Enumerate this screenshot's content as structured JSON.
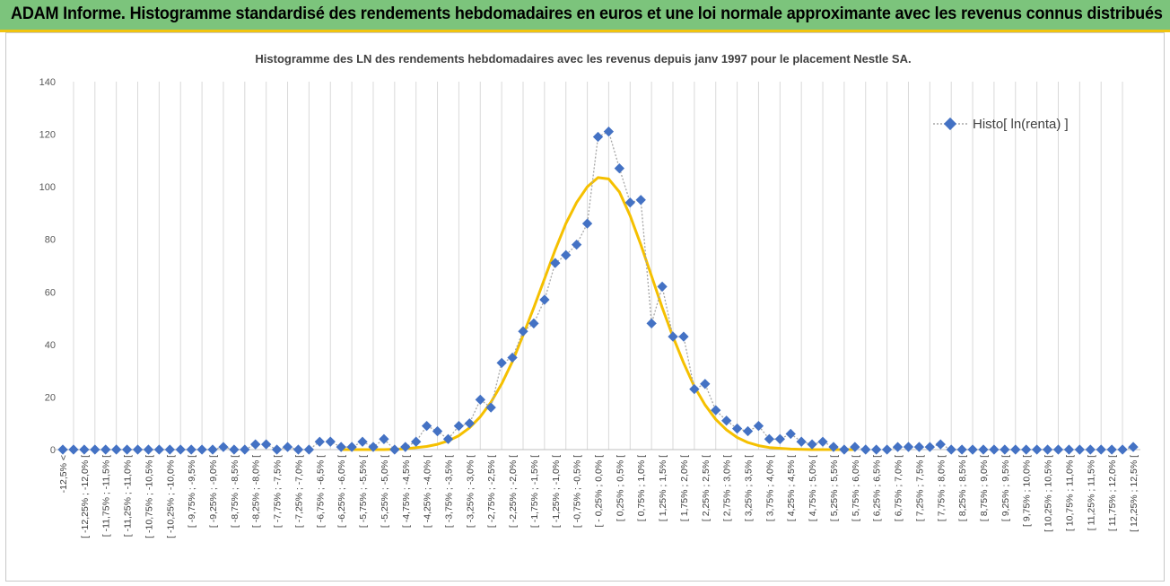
{
  "banner": {
    "title": "ADAM Informe. Histogramme standardisé des rendements hebdomadaires en euros et une loi normale approximante avec les revenus connus distribués"
  },
  "colors": {
    "banner_bg": "#7cc47c",
    "banner_border": "#f1c40f",
    "histo_marker": "#4472c4",
    "histo_line": "#a6a6a6",
    "normal_curve": "#f5c000",
    "grid": "#d9d9d9"
  },
  "chart_data": {
    "type": "line",
    "title": "Histogramme des LN des rendements hebdomadaires avec les revenus depuis janv 1997 pour le placement Nestle SA.",
    "xlabel": "",
    "ylabel": "",
    "ylim": [
      0,
      140
    ],
    "yticks": [
      0,
      20,
      40,
      60,
      80,
      100,
      120,
      140
    ],
    "grid": "vertical",
    "legend_position": "top-right",
    "categories": [
      "-12,5% <",
      "[ -12,25% ; -12,0% [",
      "[ -11,75% ; -11,5% [",
      "[ -11,25% ; -11,0% [",
      "[ -10,75% ; -10,5% [",
      "[ -10,25% ; -10,0% [",
      "[ -9,75% ; -9,5% [",
      "[ -9,25% ; -9,0% [",
      "[ -8,75% ; -8,5% [",
      "[ -8,25% ; -8,0% [",
      "[ -7,75% ; -7,5% [",
      "[ -7,25% ; -7,0% [",
      "[ -6,75% ; -6,5% [",
      "[ -6,25% ; -6,0% [",
      "[ -5,75% ; -5,5% [",
      "[ -5,25% ; -5,0% [",
      "[ -4,75% ; -4,5% [",
      "[ -4,25% ; -4,0% [",
      "[ -3,75% ; -3,5% [",
      "[ -3,25% ; -3,0% [",
      "[ -2,75% ; -2,5% [",
      "[ -2,25% ; -2,0% [",
      "[ -1,75% ; -1,5% [",
      "[ -1,25% ; -1,0% [",
      "[ -0,75% ; -0,5% [",
      "[ - 0,25% ; 0,0% [",
      "[ 0,25% ; 0,5% [",
      "[ 0,75% ; 1,0% [",
      "[ 1,25% ; 1,5% [",
      "[ 1,75% ; 2,0% [",
      "[ 2,25% ; 2,5% [",
      "[ 2,75% ; 3,0% [",
      "[ 3,25% ; 3,5% [",
      "[ 3,75% ; 4,0% [",
      "[ 4,25% ; 4,5% [",
      "[ 4,75% ; 5,0% [",
      "[ 5,25% ; 5,5% [",
      "[ 5,75% ; 6,0% [",
      "[ 6,25% ; 6,5% [",
      "[ 6,75% ; 7,0% [",
      "[ 7,25% ; 7,5% [",
      "[ 7,75% ; 8,0% [",
      "[ 8,25% ; 8,5% [",
      "[ 8,75% ; 9,0% [",
      "[ 9,25% ; 9,5% [",
      "[ 9,75% ; 10,0% [",
      "[ 10,25% ; 10,5% [",
      "[ 10,75% ; 11,0% [",
      "[ 11,25% ; 11,5% [",
      "[ 11,75% ; 12,0% [",
      "[ 12,25% ; 12,5% ["
    ],
    "series": [
      {
        "name": "Histo[ ln(renta) ]",
        "x": [
          -12.5,
          -12.25,
          -12,
          -11.75,
          -11.5,
          -11.25,
          -11,
          -10.75,
          -10.5,
          -10.25,
          -10,
          -9.75,
          -9.5,
          -9.25,
          -9,
          -8.75,
          -8.5,
          -8.25,
          -8,
          -7.75,
          -7.5,
          -7.25,
          -7,
          -6.75,
          -6.5,
          -6.25,
          -6,
          -5.75,
          -5.5,
          -5.25,
          -5,
          -4.75,
          -4.5,
          -4.25,
          -4,
          -3.75,
          -3.5,
          -3.25,
          -3,
          -2.75,
          -2.5,
          -2.25,
          -2,
          -1.75,
          -1.5,
          -1.25,
          -1,
          -0.75,
          -0.5,
          -0.25,
          0,
          0.25,
          0.5,
          0.75,
          1,
          1.25,
          1.5,
          1.75,
          2,
          2.25,
          2.5,
          2.75,
          3,
          3.25,
          3.5,
          3.75,
          4,
          4.25,
          4.5,
          4.75,
          5,
          5.25,
          5.5,
          5.75,
          6,
          6.25,
          6.5,
          6.75,
          7,
          7.25,
          7.5,
          7.75,
          8,
          8.25,
          8.5,
          8.75,
          9,
          9.25,
          9.5,
          9.75,
          10,
          10.25,
          10.5,
          10.75,
          11,
          11.25,
          11.5,
          11.75,
          12,
          12.25,
          12.5
        ],
        "values": [
          0,
          0,
          0,
          0,
          0,
          0,
          0,
          0,
          0,
          0,
          0,
          0,
          0,
          0,
          0,
          1,
          0,
          0,
          2,
          2,
          0,
          1,
          0,
          0,
          3,
          3,
          1,
          1,
          3,
          1,
          4,
          0,
          1,
          3,
          9,
          7,
          4,
          9,
          10,
          19,
          16,
          33,
          35,
          45,
          48,
          57,
          71,
          74,
          78,
          86,
          119,
          121,
          107,
          94,
          95,
          48,
          62,
          43,
          43,
          23,
          25,
          15,
          11,
          8,
          7,
          9,
          4,
          4,
          6,
          3,
          2,
          3,
          1,
          0,
          1,
          0,
          0,
          0,
          1,
          1,
          1,
          1,
          2,
          0,
          0,
          0,
          0,
          0,
          0,
          0,
          0,
          0,
          0,
          0,
          0,
          0,
          0,
          0,
          0,
          0,
          1
        ]
      },
      {
        "name": "",
        "x": [
          -6,
          -5.5,
          -5,
          -4.5,
          -4,
          -3.75,
          -3.5,
          -3.25,
          -3,
          -2.75,
          -2.5,
          -2.25,
          -2,
          -1.75,
          -1.5,
          -1.25,
          -1,
          -0.75,
          -0.5,
          -0.25,
          0,
          0.25,
          0.5,
          0.75,
          1,
          1.25,
          1.5,
          1.75,
          2,
          2.25,
          2.5,
          2.75,
          3,
          3.25,
          3.5,
          3.75,
          4,
          4.5,
          5,
          5.5,
          6
        ],
        "values": [
          0,
          0,
          0,
          0.3,
          1.2,
          2,
          3.3,
          5.3,
          8.3,
          12.5,
          18,
          25,
          33.5,
          43.5,
          54,
          65,
          76,
          86,
          94,
          100,
          103.5,
          103,
          98,
          89,
          78,
          66,
          54,
          43,
          33,
          24,
          17,
          11.5,
          7.5,
          4.6,
          2.7,
          1.5,
          0.8,
          0.2,
          0,
          0,
          0
        ]
      }
    ]
  }
}
